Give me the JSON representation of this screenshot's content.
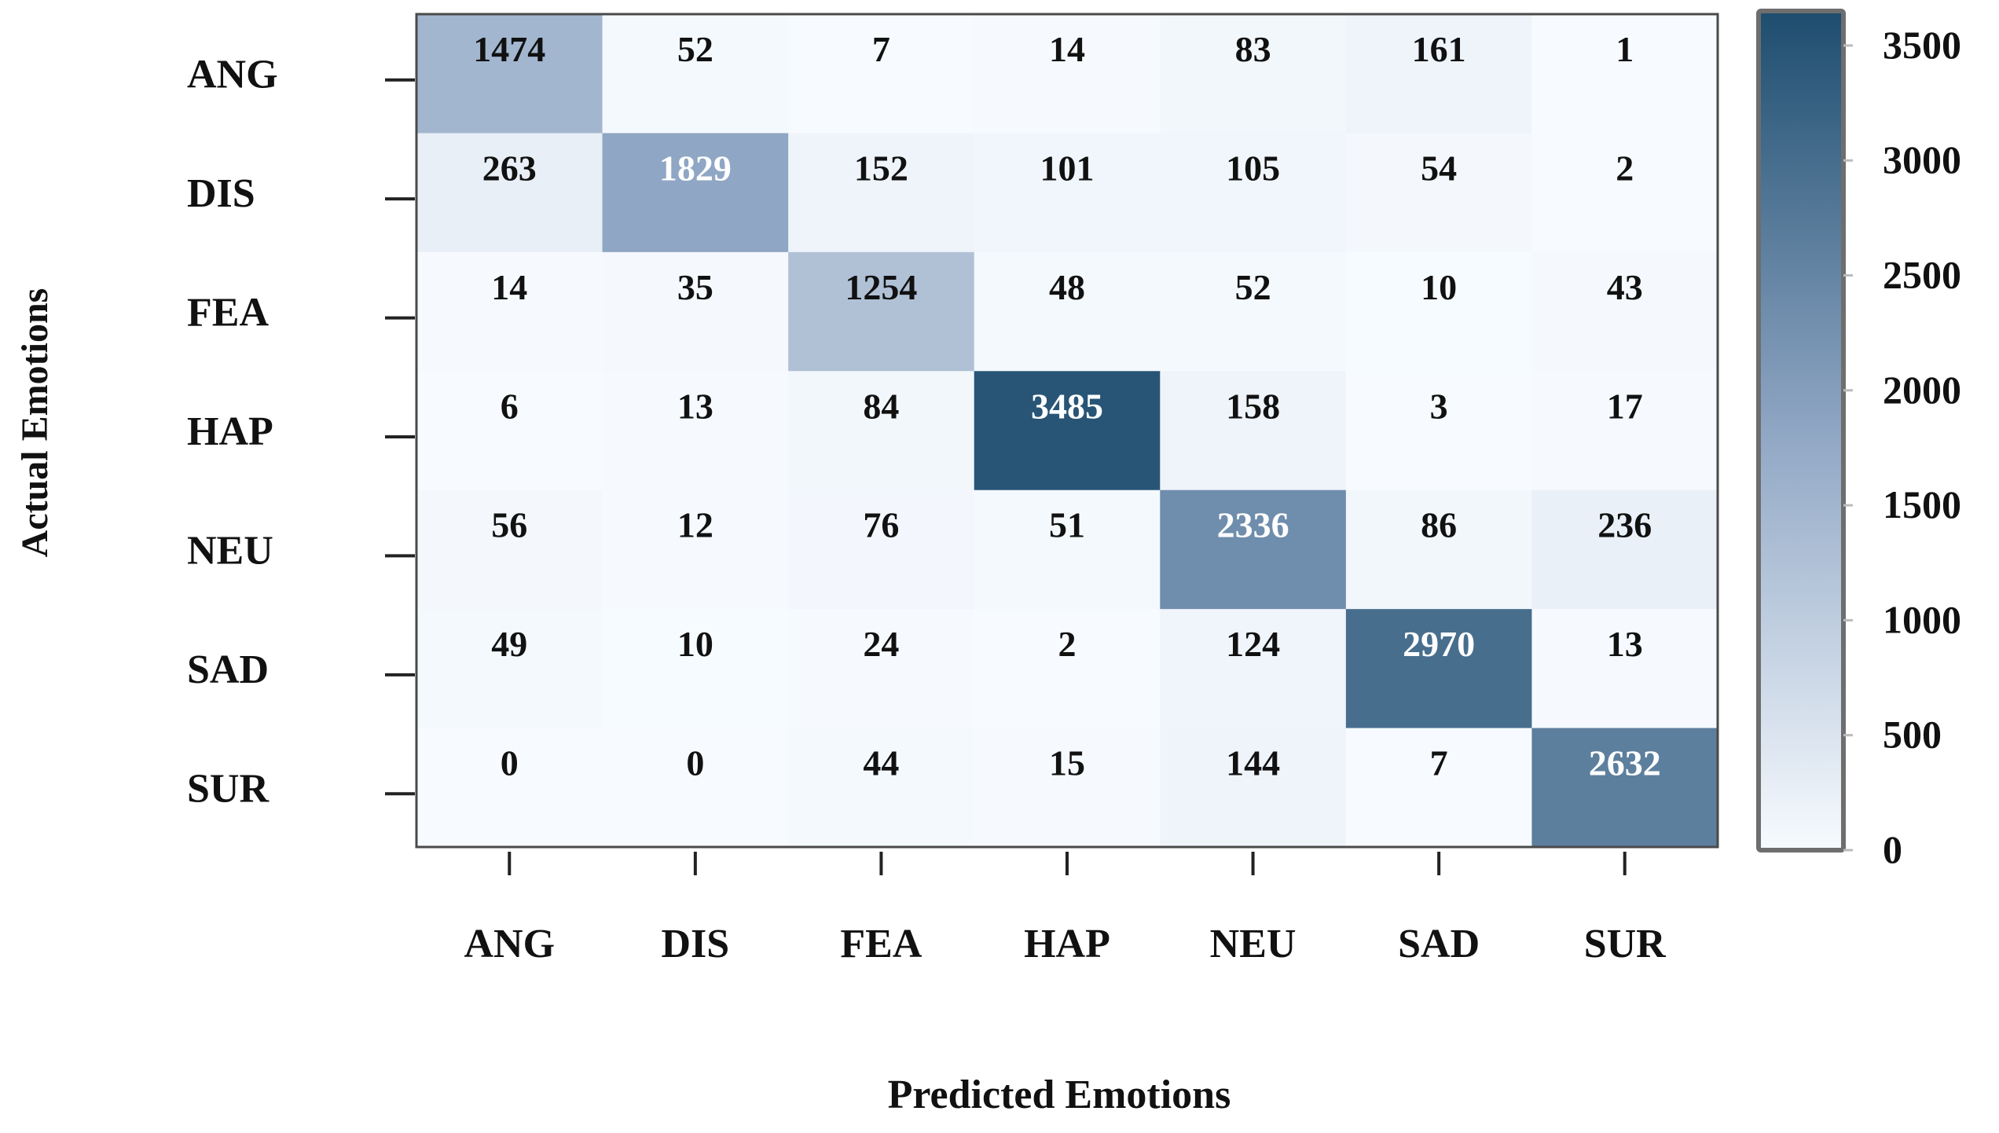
{
  "chart_data": {
    "type": "heatmap",
    "title": "",
    "xlabel": "Predicted Emotions",
    "ylabel": "Actual Emotions",
    "x_categories": [
      "ANG",
      "DIS",
      "FEA",
      "HAP",
      "NEU",
      "SAD",
      "SUR"
    ],
    "y_categories": [
      "ANG",
      "DIS",
      "FEA",
      "HAP",
      "NEU",
      "SAD",
      "SUR"
    ],
    "matrix": [
      [
        1474,
        52,
        7,
        14,
        83,
        161,
        1
      ],
      [
        263,
        1829,
        152,
        101,
        105,
        54,
        2
      ],
      [
        14,
        35,
        1254,
        48,
        52,
        10,
        43
      ],
      [
        6,
        13,
        84,
        3485,
        158,
        3,
        17
      ],
      [
        56,
        12,
        76,
        51,
        2336,
        86,
        236
      ],
      [
        49,
        10,
        24,
        2,
        124,
        2970,
        13
      ],
      [
        0,
        0,
        44,
        15,
        144,
        7,
        2632
      ]
    ],
    "colorbar": {
      "min": 0,
      "max": 3650,
      "ticks": [
        0,
        500,
        1000,
        1500,
        2000,
        2500,
        3000,
        3500
      ],
      "colors": {
        "low": "#f7fbff",
        "mid": "#8fa6c4",
        "high": "#1e4d6e"
      }
    },
    "annotation_colors": {
      "dark": "#111111",
      "light": "#ffffff"
    }
  }
}
